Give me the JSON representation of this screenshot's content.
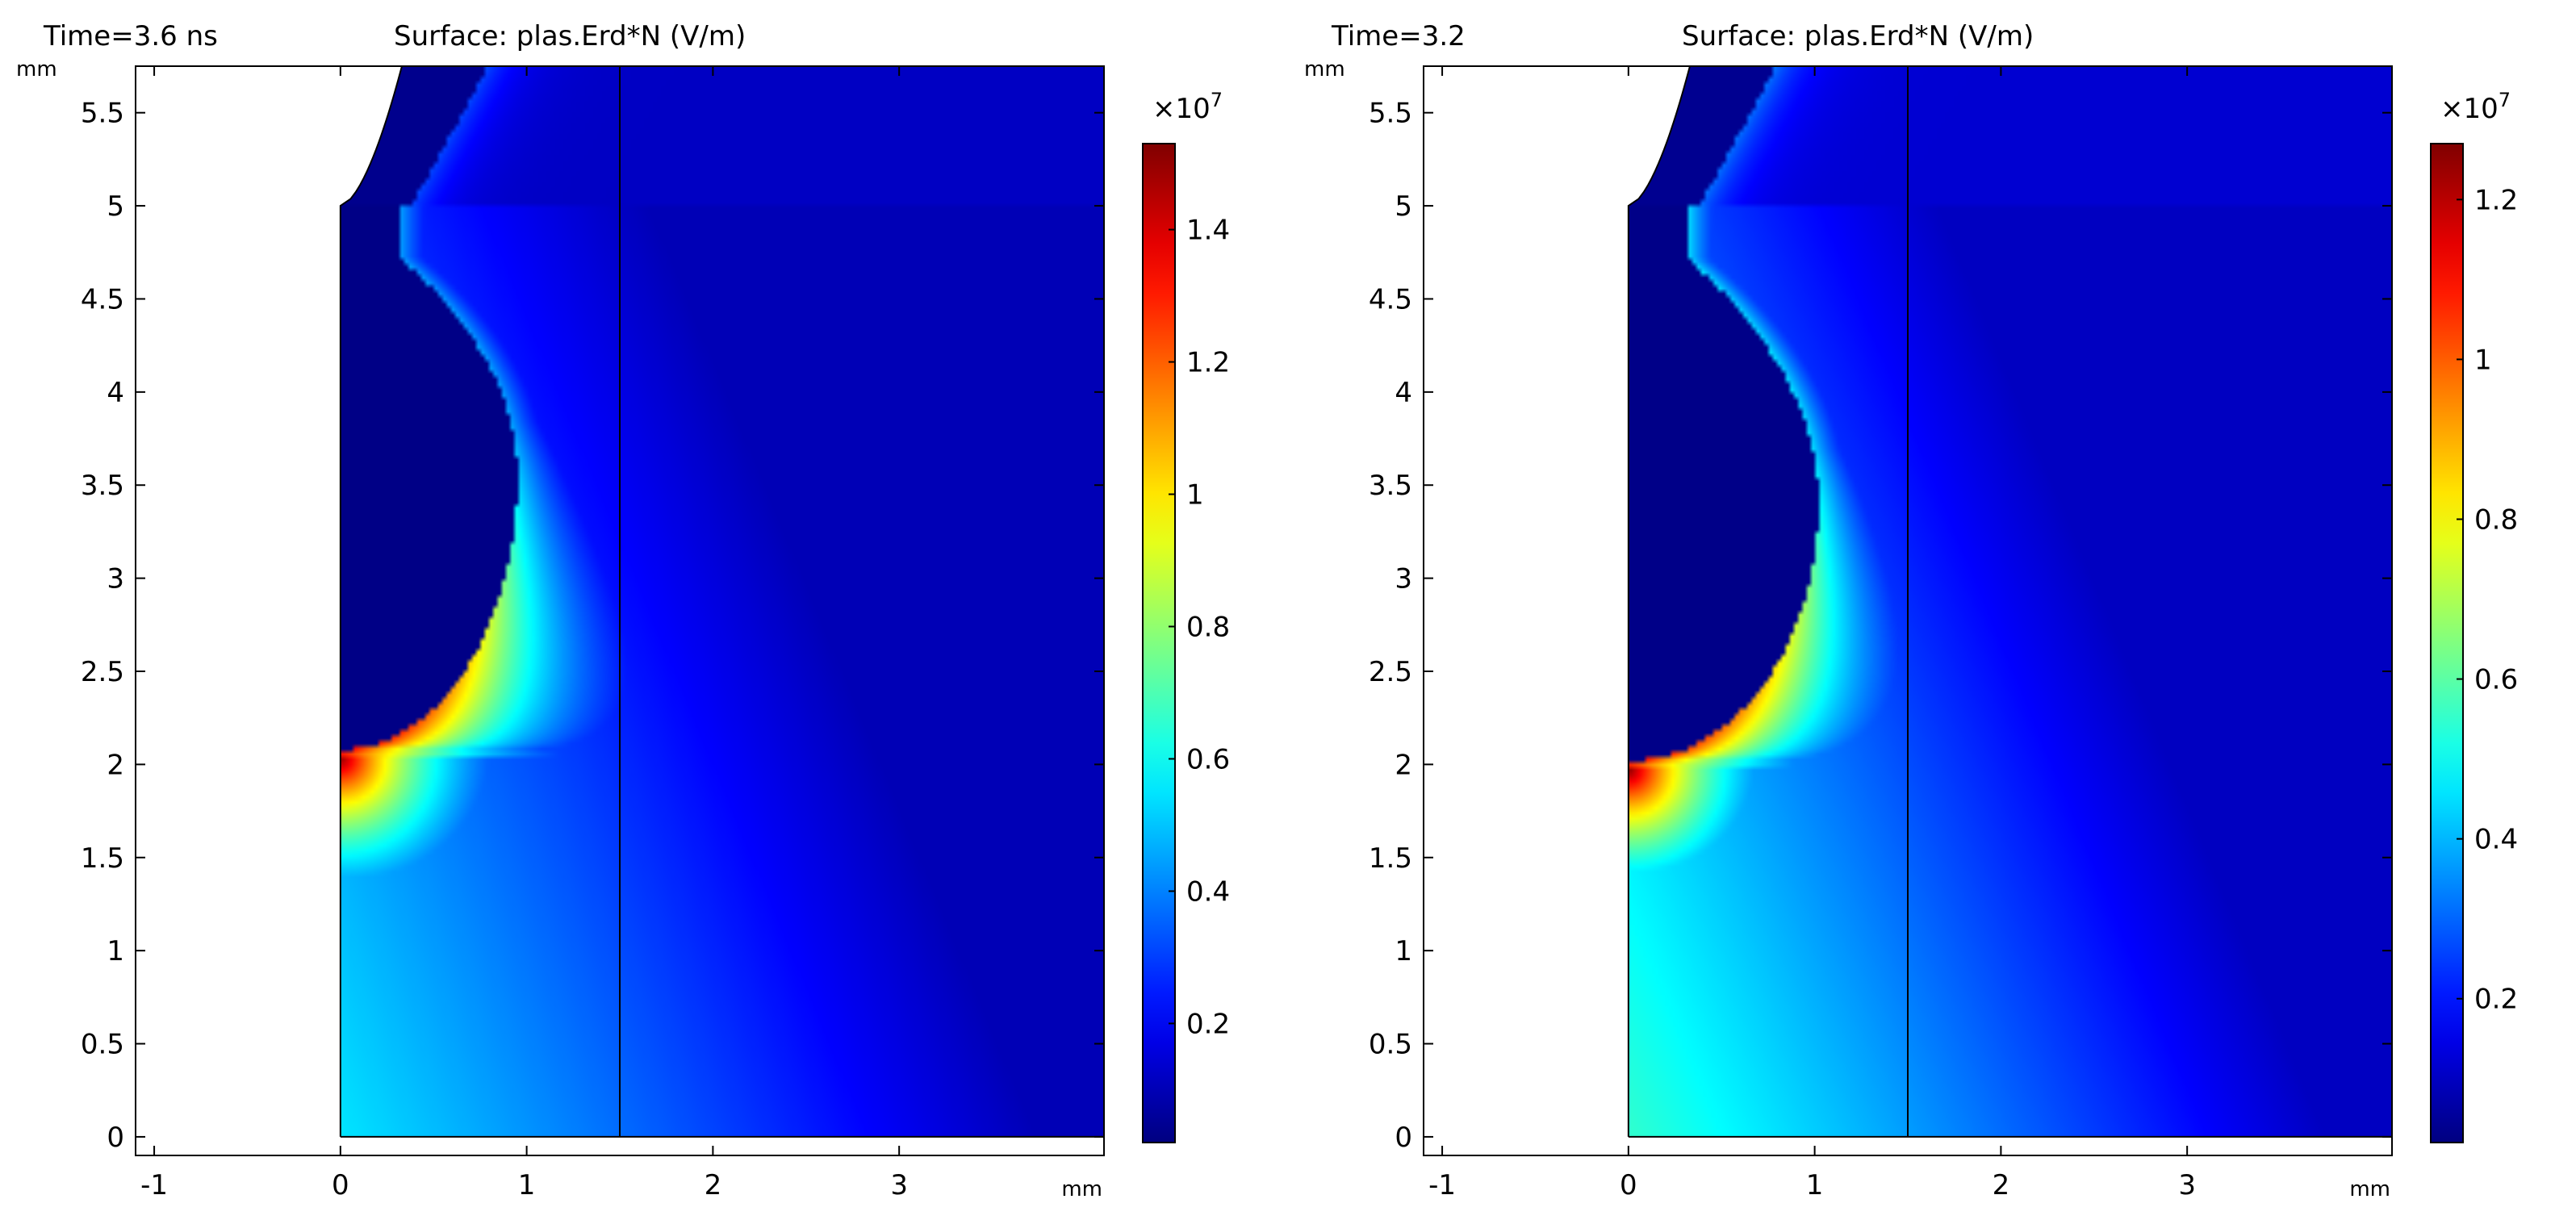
{
  "chart_data": [
    {
      "type": "heatmap",
      "title_time": "Time=3.6 ns",
      "title_surface": "Surface: plas.Erd*N (V/m)",
      "x_unit": "mm",
      "y_unit": "mm",
      "xlim": [
        -1.1,
        4.1
      ],
      "ylim": [
        -0.1,
        5.75
      ],
      "x_ticks": [
        -1,
        0,
        1,
        2,
        3
      ],
      "x_tick_labels": [
        "-1",
        "0",
        "1",
        "2",
        "3"
      ],
      "y_ticks": [
        0,
        0.5,
        1,
        1.5,
        2,
        2.5,
        3,
        3.5,
        4,
        4.5,
        5,
        5.5
      ],
      "y_tick_labels": [
        "0",
        "0.5",
        "1",
        "1.5",
        "2",
        "2.5",
        "3",
        "3.5",
        "4",
        "4.5",
        "5",
        "5.5"
      ],
      "boundary_line_x": 1.5,
      "colorbar": {
        "multiplier": "×10",
        "exponent": "7",
        "range": [
          0.02,
          1.53
        ],
        "ticks": [
          0.2,
          0.4,
          0.6,
          0.8,
          1,
          1.2,
          1.4
        ],
        "tick_labels": [
          "0.2",
          "0.4",
          "0.6",
          "0.8",
          "1",
          "1.2",
          "1.4"
        ],
        "colormap": "jet"
      },
      "field": {
        "cavity_bottom_y": 2.08,
        "cavity_top_y": 5.0,
        "cavity_max_radius": 0.95,
        "cavity_max_radius_y": 3.55,
        "peak_value": 1.5,
        "peak_location": [
          0.05,
          1.95
        ]
      }
    },
    {
      "type": "heatmap",
      "title_time": "Time=3.2",
      "title_surface": "Surface: plas.Erd*N (V/m)",
      "x_unit": "mm",
      "y_unit": "mm",
      "xlim": [
        -1.1,
        4.1
      ],
      "ylim": [
        -0.1,
        5.75
      ],
      "x_ticks": [
        -1,
        0,
        1,
        2,
        3
      ],
      "x_tick_labels": [
        "-1",
        "0",
        "1",
        "2",
        "3"
      ],
      "y_ticks": [
        0,
        0.5,
        1,
        1.5,
        2,
        2.5,
        3,
        3.5,
        4,
        4.5,
        5,
        5.5
      ],
      "y_tick_labels": [
        "0",
        "0.5",
        "1",
        "1.5",
        "2",
        "2.5",
        "3",
        "3.5",
        "4",
        "4.5",
        "5",
        "5.5"
      ],
      "boundary_line_x": 1.5,
      "colorbar": {
        "multiplier": "×10",
        "exponent": "7",
        "range": [
          0.02,
          1.27
        ],
        "ticks": [
          0.2,
          0.4,
          0.6,
          0.8,
          1,
          1.2
        ],
        "tick_labels": [
          "0.2",
          "0.4",
          "0.6",
          "0.8",
          "1",
          "1.2"
        ],
        "colormap": "jet"
      },
      "field": {
        "cavity_bottom_y": 2.02,
        "cavity_top_y": 5.0,
        "cavity_max_radius": 1.02,
        "cavity_max_radius_y": 3.4,
        "peak_value": 1.26,
        "peak_location": [
          0.05,
          1.92
        ]
      }
    }
  ]
}
